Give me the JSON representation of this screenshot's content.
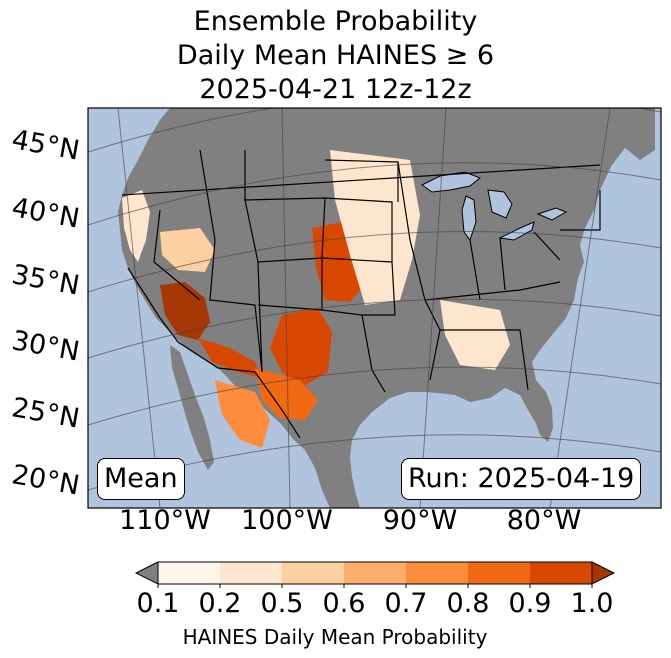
{
  "title": {
    "line1": "Ensemble Probability",
    "line2": "Daily Mean HAINES ≥ 6",
    "line3": "2025-04-21 12z-12z"
  },
  "map": {
    "lat_labels": [
      "45°N",
      "40°N",
      "35°N",
      "30°N",
      "25°N",
      "20°N"
    ],
    "lon_labels": [
      "110°W",
      "100°W",
      "90°W",
      "80°W"
    ],
    "stat_box": "Mean",
    "run_box": "Run: 2025-04-19",
    "colors": {
      "ocean": "#b0c4de",
      "land_masked": "#808080",
      "lakes": "#b0c4de",
      "borders": "#000000",
      "graticule": "#404040"
    },
    "regions": [
      {
        "name": "west-coast",
        "level": 1
      },
      {
        "name": "great-basin",
        "level": 2
      },
      {
        "name": "southern-nevada",
        "level": 7
      },
      {
        "name": "arizona-gila",
        "level": 6
      },
      {
        "name": "new-mexico",
        "level": 6
      },
      {
        "name": "colorado-kansas",
        "level": 6
      },
      {
        "name": "west-texas",
        "level": 5
      },
      {
        "name": "great-plains",
        "level": 1
      },
      {
        "name": "southeast",
        "level": 1
      },
      {
        "name": "northern-mexico",
        "level": 4
      }
    ]
  },
  "colorbar": {
    "ticks": [
      "0.1",
      "0.2",
      "0.5",
      "0.6",
      "0.7",
      "0.8",
      "0.9",
      "1.0"
    ],
    "colors": [
      "#fff5eb",
      "#fee6ce",
      "#fdd0a2",
      "#fdae6b",
      "#fd8d3c",
      "#f16913",
      "#d94801",
      "#a63603"
    ],
    "under_color": "#808080",
    "label": "HAINES Daily Mean Probability"
  }
}
